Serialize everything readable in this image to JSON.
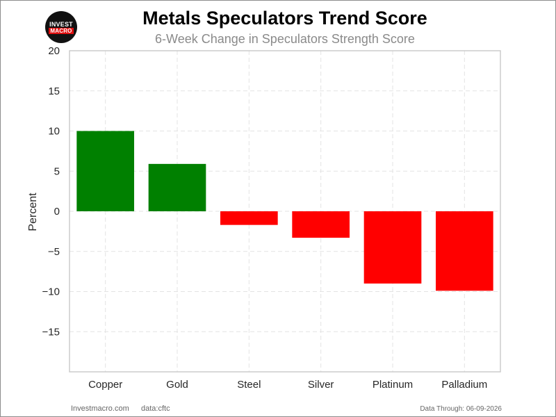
{
  "logo": {
    "top_text": "INVEST",
    "bottom_text": "MACRO"
  },
  "chart_data": {
    "type": "bar",
    "title": "Metals Speculators Trend Score",
    "subtitle": "6-Week Change in Speculators Strength Score",
    "xlabel": "",
    "ylabel": "Percent",
    "categories": [
      "Copper",
      "Gold",
      "Steel",
      "Silver",
      "Platinum",
      "Palladium"
    ],
    "values": [
      10.0,
      5.9,
      -1.7,
      -3.3,
      -9.0,
      -9.9
    ],
    "ylim": [
      -20,
      20
    ],
    "yticks": [
      20,
      15,
      10,
      5,
      0,
      -5,
      -10,
      -15
    ],
    "ytick_labels": [
      "20",
      "15",
      "10",
      "5",
      "0",
      "−5",
      "−10",
      "−15"
    ],
    "grid": true,
    "colors": {
      "positive": "#008000",
      "negative": "#ff0000"
    }
  },
  "footer": {
    "site": "Investmacro.com",
    "source": "data:cftc",
    "data_through": "Data Through: 06-09-2026"
  }
}
